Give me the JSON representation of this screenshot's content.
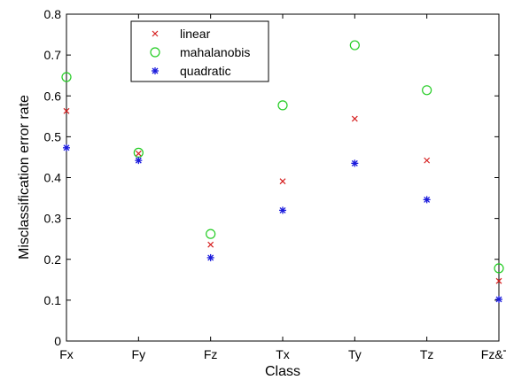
{
  "chart_data": {
    "type": "scatter",
    "title": "",
    "xlabel": "Class",
    "ylabel": "Misclassification error rate",
    "categories": [
      "Fx",
      "Fy",
      "Fz",
      "Tx",
      "Ty",
      "Tz",
      "Fz&Tz"
    ],
    "ylim": [
      0,
      0.8
    ],
    "yticks": [
      "0",
      "0.1",
      "0.2",
      "0.3",
      "0.4",
      "0.5",
      "0.6",
      "0.7",
      "0.8"
    ],
    "grid": false,
    "legend_position": "top-left",
    "series": [
      {
        "name": "linear",
        "marker": "x",
        "color": "#d62020",
        "values": [
          0.563,
          0.459,
          0.236,
          0.391,
          0.544,
          0.442,
          0.147
        ]
      },
      {
        "name": "mahalanobis",
        "marker": "circle",
        "color": "#22cc22",
        "values": [
          0.646,
          0.461,
          0.262,
          0.577,
          0.724,
          0.614,
          0.178
        ]
      },
      {
        "name": "quadratic",
        "marker": "asterisk",
        "color": "#1a1adc",
        "values": [
          0.473,
          0.442,
          0.204,
          0.32,
          0.435,
          0.346,
          0.102
        ]
      }
    ]
  }
}
